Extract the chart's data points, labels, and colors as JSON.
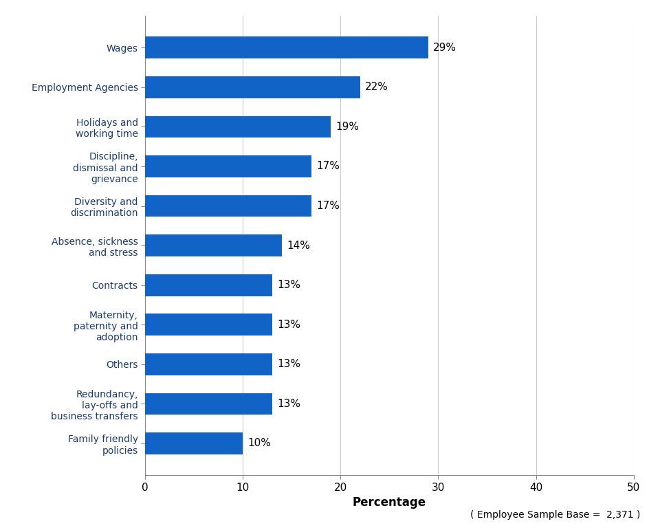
{
  "categories": [
    "Family friendly\npolicies",
    "Redundancy,\nlay-offs and\nbusiness transfers",
    "Others",
    "Maternity,\npaternity and\nadoption",
    "Contracts",
    "Absence, sickness\nand stress",
    "Diversity and\ndiscrimination",
    "Discipline,\ndismissal and\ngrievance",
    "Holidays and\nworking time",
    "Employment Agencies",
    "Wages"
  ],
  "values": [
    10,
    13,
    13,
    13,
    13,
    14,
    17,
    17,
    19,
    22,
    29
  ],
  "bar_color": "#1263C6",
  "label_color": "#000000",
  "tick_label_color": "#1C3A6B",
  "xlabel": "Percentage",
  "xlim": [
    0,
    50
  ],
  "xticks": [
    0,
    10,
    20,
    30,
    40,
    50
  ],
  "footnote": "( Employee Sample Base =  2,371 )",
  "background_color": "#FFFFFF",
  "grid_color": "#CCCCCC",
  "bar_height": 0.55
}
